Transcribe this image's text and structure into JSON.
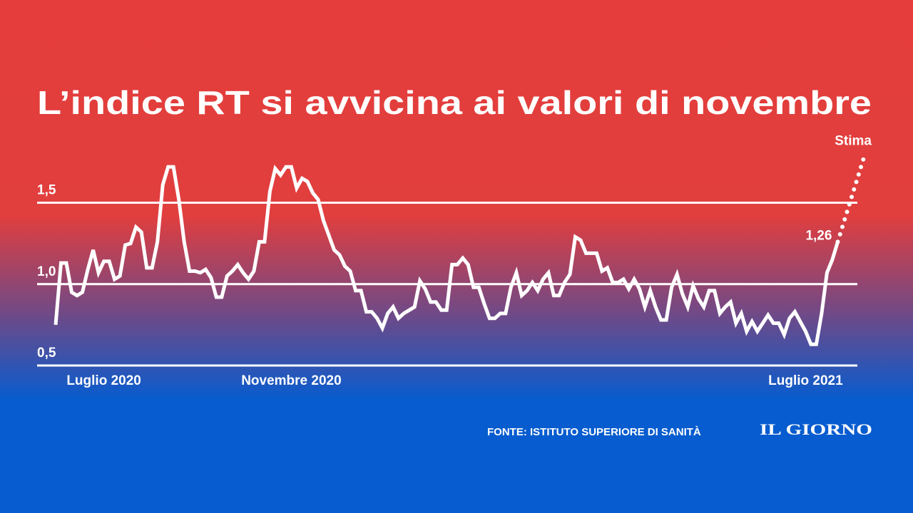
{
  "chart_data": {
    "type": "line",
    "title": "L’indice RT si avvicina ai valori di novembre",
    "source": "FONTE: ISTITUTO SUPERIORE DI SANITÀ",
    "logo": "IL GIORNO",
    "ylim": [
      0.5,
      1.8
    ],
    "yticks": [
      {
        "value": 0.5,
        "label": "0,5"
      },
      {
        "value": 1.0,
        "label": "1,0"
      },
      {
        "value": 1.5,
        "label": "1,5"
      }
    ],
    "grid": true,
    "categories": [
      null,
      null,
      null,
      null,
      null,
      null,
      null,
      null,
      null,
      "Luglio 2020",
      null,
      null,
      null,
      null,
      null,
      null,
      null,
      null,
      null,
      null,
      null,
      null,
      null,
      null,
      null,
      null,
      null,
      null,
      null,
      null,
      null,
      null,
      null,
      null,
      null,
      null,
      null,
      null,
      null,
      null,
      null,
      null,
      null,
      null,
      "Novembre 2020",
      null,
      null,
      null,
      null,
      null,
      null,
      null,
      null,
      null,
      null,
      null,
      null,
      null,
      null,
      null,
      null,
      null,
      null,
      null,
      null,
      null,
      null,
      null,
      null,
      null,
      null,
      null,
      null,
      null,
      null,
      null,
      null,
      null,
      null,
      null,
      null,
      null,
      null,
      null,
      null,
      null,
      null,
      null,
      null,
      null,
      null,
      null,
      null,
      null,
      null,
      null,
      null,
      null,
      null,
      null,
      null,
      null,
      null,
      null,
      null,
      null,
      null,
      null,
      null,
      null,
      null,
      null,
      null,
      null,
      null,
      null,
      null,
      null,
      null,
      null,
      null,
      null,
      null,
      null,
      null,
      null,
      null,
      null,
      null,
      null,
      null,
      null,
      null,
      null,
      null,
      null,
      null,
      null,
      null,
      null,
      "Luglio 2021",
      null,
      null,
      null,
      null,
      null,
      null,
      null,
      null,
      null,
      null,
      null
    ],
    "series": [
      {
        "color": "#ffffff",
        "style": "solid",
        "values": [
          0.75,
          1.13,
          1.13,
          0.95,
          0.93,
          0.95,
          1.09,
          1.21,
          1.07,
          1.14,
          1.14,
          1.03,
          1.05,
          1.24,
          1.25,
          1.35,
          1.32,
          1.1,
          1.1,
          1.26,
          1.61,
          1.72,
          1.72,
          1.52,
          1.26,
          1.08,
          1.08,
          1.07,
          1.09,
          1.04,
          0.92,
          0.92,
          1.05,
          1.08,
          1.12,
          1.07,
          1.03,
          1.08,
          1.26,
          1.26,
          1.57,
          1.71,
          1.67,
          1.72,
          1.72,
          1.59,
          1.65,
          1.63,
          1.56,
          1.52,
          1.39,
          1.3,
          1.21,
          1.18,
          1.11,
          1.08,
          0.96,
          0.96,
          0.83,
          0.83,
          0.79,
          0.73,
          0.82,
          0.86,
          0.79,
          0.82,
          0.84,
          0.86,
          1.02,
          0.97,
          0.89,
          0.89,
          0.84,
          0.84,
          1.12,
          1.12,
          1.16,
          1.12,
          0.98,
          0.98,
          0.88,
          0.79,
          0.79,
          0.82,
          0.82,
          0.98,
          1.07,
          0.93,
          0.96,
          1.01,
          0.96,
          1.03,
          1.07,
          0.93,
          0.93,
          1.01,
          1.06,
          1.29,
          1.27,
          1.19,
          1.19,
          1.19,
          1.08,
          1.1,
          1.01,
          1.01,
          1.03,
          0.97,
          1.03,
          0.97,
          0.86,
          0.96,
          0.86,
          0.78,
          0.78,
          0.98,
          1.06,
          0.94,
          0.86,
          0.99,
          0.91,
          0.86,
          0.96,
          0.96,
          0.82,
          0.86,
          0.89,
          0.76,
          0.82,
          0.71,
          0.77,
          0.71,
          0.76,
          0.81,
          0.76,
          0.76,
          0.69,
          0.79,
          0.83,
          0.77,
          0.71,
          0.63,
          0.63,
          0.82,
          1.07,
          1.15,
          1.26,
          null,
          null,
          null,
          null,
          null
        ],
        "value_labels": [
          null,
          null,
          null,
          null,
          null,
          null,
          null,
          null,
          null,
          null,
          null,
          null,
          null,
          null,
          null,
          null,
          null,
          null,
          null,
          null,
          null,
          null,
          null,
          null,
          null,
          null,
          null,
          null,
          null,
          null,
          null,
          null,
          null,
          null,
          null,
          null,
          null,
          null,
          null,
          null,
          null,
          null,
          null,
          null,
          null,
          null,
          null,
          null,
          null,
          null,
          null,
          null,
          null,
          null,
          null,
          null,
          null,
          null,
          null,
          null,
          null,
          null,
          null,
          null,
          null,
          null,
          null,
          null,
          null,
          null,
          null,
          null,
          null,
          null,
          null,
          null,
          null,
          null,
          null,
          null,
          null,
          null,
          null,
          null,
          null,
          null,
          null,
          null,
          null,
          null,
          null,
          null,
          null,
          null,
          null,
          null,
          null,
          null,
          null,
          null,
          null,
          null,
          null,
          null,
          null,
          null,
          null,
          null,
          null,
          null,
          null,
          null,
          null,
          null,
          null,
          null,
          null,
          null,
          null,
          null,
          null,
          null,
          null,
          null,
          null,
          null,
          null,
          null,
          null,
          null,
          null,
          null,
          null,
          null,
          null,
          null,
          null,
          null,
          null,
          null,
          null,
          null,
          null,
          null,
          null,
          null,
          "1,26",
          null,
          null,
          null,
          null,
          null
        ]
      },
      {
        "name": "Stima",
        "color": "#ffffff",
        "style": "dotted",
        "values": [
          null,
          null,
          null,
          null,
          null,
          null,
          null,
          null,
          null,
          null,
          null,
          null,
          null,
          null,
          null,
          null,
          null,
          null,
          null,
          null,
          null,
          null,
          null,
          null,
          null,
          null,
          null,
          null,
          null,
          null,
          null,
          null,
          null,
          null,
          null,
          null,
          null,
          null,
          null,
          null,
          null,
          null,
          null,
          null,
          null,
          null,
          null,
          null,
          null,
          null,
          null,
          null,
          null,
          null,
          null,
          null,
          null,
          null,
          null,
          null,
          null,
          null,
          null,
          null,
          null,
          null,
          null,
          null,
          null,
          null,
          null,
          null,
          null,
          null,
          null,
          null,
          null,
          null,
          null,
          null,
          null,
          null,
          null,
          null,
          null,
          null,
          null,
          null,
          null,
          null,
          null,
          null,
          null,
          null,
          null,
          null,
          null,
          null,
          null,
          null,
          null,
          null,
          null,
          null,
          null,
          null,
          null,
          null,
          null,
          null,
          null,
          null,
          null,
          null,
          null,
          null,
          null,
          null,
          null,
          null,
          null,
          null,
          null,
          null,
          null,
          null,
          null,
          null,
          null,
          null,
          null,
          null,
          null,
          null,
          null,
          null,
          null,
          null,
          null,
          null,
          null,
          null,
          null,
          null,
          null,
          null,
          null,
          null,
          null,
          null,
          null,
          1.79
        ]
      }
    ]
  }
}
